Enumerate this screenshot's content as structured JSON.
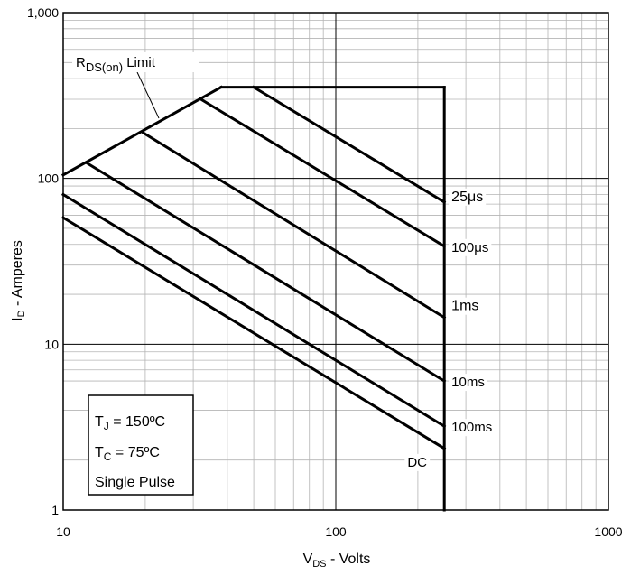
{
  "chart_data": {
    "type": "line",
    "xscale": "log",
    "yscale": "log",
    "xlim": [
      10,
      1000
    ],
    "ylim": [
      1,
      1000
    ],
    "grid": true,
    "xlabel": {
      "main": "V",
      "sub": "DS",
      "rest": " - Volts"
    },
    "ylabel": {
      "main": "I",
      "sub": "D",
      "rest": " - Amperes"
    },
    "x_ticks": [
      {
        "value": 10,
        "label": "10"
      },
      {
        "value": 100,
        "label": "100"
      },
      {
        "value": 1000,
        "label": "1000"
      }
    ],
    "y_ticks": [
      {
        "value": 1,
        "label": "1"
      },
      {
        "value": 10,
        "label": "10"
      },
      {
        "value": 100,
        "label": "100"
      },
      {
        "value": 1000,
        "label": "1,000"
      }
    ],
    "rdson_label": {
      "main": "R",
      "sub": "DS(on)",
      "rest": " Limit"
    },
    "rdson_limit": {
      "x": [
        10,
        38
      ],
      "y": [
        105,
        355
      ]
    },
    "current_limit": {
      "x": [
        38,
        250
      ],
      "y": [
        355,
        355
      ]
    },
    "voltage_limit": {
      "x": [
        250,
        250
      ],
      "y": [
        355,
        1
      ]
    },
    "series": [
      {
        "name": "25μs",
        "x": [
          50,
          250
        ],
        "y": [
          355,
          72
        ]
      },
      {
        "name": "100μs",
        "x": [
          32,
          250
        ],
        "y": [
          300,
          39
        ]
      },
      {
        "name": "1ms",
        "x": [
          19.7,
          250
        ],
        "y": [
          188,
          14.5
        ]
      },
      {
        "name": "10ms",
        "x": [
          12.2,
          250
        ],
        "y": [
          124,
          6
        ]
      },
      {
        "name": "100ms",
        "x": [
          10,
          250
        ],
        "y": [
          80,
          3.2
        ]
      },
      {
        "name": "DC",
        "x": [
          10,
          250
        ],
        "y": [
          58,
          2.35
        ]
      }
    ],
    "annotation": {
      "tj": {
        "main": "T",
        "sub": "J",
        "rest": " = 150ºC"
      },
      "tc": {
        "main": "T",
        "sub": "C",
        "rest": " = 75ºC"
      },
      "pulse": "Single Pulse"
    }
  }
}
